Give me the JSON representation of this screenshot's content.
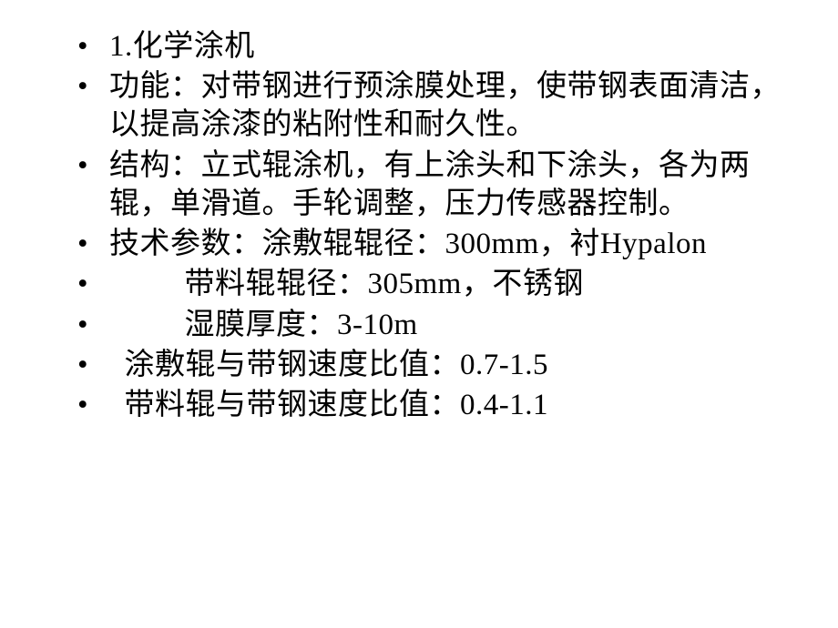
{
  "slide": {
    "bullets": [
      {
        "text": "1.化学涂机",
        "indent": "none"
      },
      {
        "text": "功能：对带钢进行预涂膜处理，使带钢表面清洁，以提高涂漆的粘附性和耐久性。",
        "indent": "none"
      },
      {
        "text": "结构：立式辊涂机，有上涂头和下涂头，各为两辊，单滑道。手轮调整，压力传感器控制。",
        "indent": "none"
      },
      {
        "text": "技术参数：涂敷辊辊径：300mm，衬Hypalon",
        "indent": "none"
      },
      {
        "text": "带料辊辊径：305mm，不锈钢",
        "indent": "indent1"
      },
      {
        "text": "湿膜厚度：3-10m",
        "indent": "indent1"
      },
      {
        "text": "涂敷辊与带钢速度比值：0.7-1.5",
        "indent": "half"
      },
      {
        "text": "带料辊与带钢速度比值：0.4-1.1",
        "indent": "half"
      }
    ]
  },
  "styles": {
    "font_size": 33,
    "text_color": "#000000",
    "background_color": "#ffffff",
    "line_height": 1.28
  }
}
